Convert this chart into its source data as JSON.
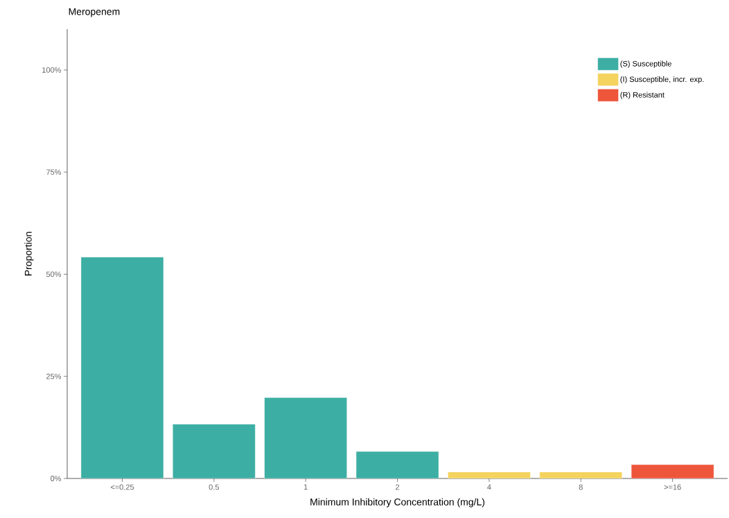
{
  "chart_data": {
    "type": "bar",
    "title": "Meropenem",
    "xlabel": "Minimum Inhibitory Concentration (mg/L)",
    "ylabel": "Proportion",
    "categories": [
      "<=0.25",
      "0.5",
      "1",
      "2",
      "4",
      "8",
      ">=16"
    ],
    "series": [
      {
        "name": "(S) Susceptible",
        "color": "#3daea3",
        "values": [
          54.2,
          13.3,
          19.8,
          6.6,
          null,
          null,
          null
        ]
      },
      {
        "name": "(I) Susceptible, incr. exp.",
        "color": "#f4d35e",
        "values": [
          null,
          null,
          null,
          null,
          1.6,
          1.6,
          null
        ]
      },
      {
        "name": "(R) Resistant",
        "color": "#ee563b",
        "values": [
          null,
          null,
          null,
          null,
          null,
          null,
          3.4
        ]
      }
    ],
    "ylim": [
      0,
      110
    ],
    "yticks": [
      {
        "value": 0,
        "label": "0%"
      },
      {
        "value": 25,
        "label": "25%"
      },
      {
        "value": 50,
        "label": "50%"
      },
      {
        "value": 75,
        "label": "75%"
      },
      {
        "value": 100,
        "label": "100%"
      }
    ],
    "legend": "top right",
    "grid": false
  }
}
